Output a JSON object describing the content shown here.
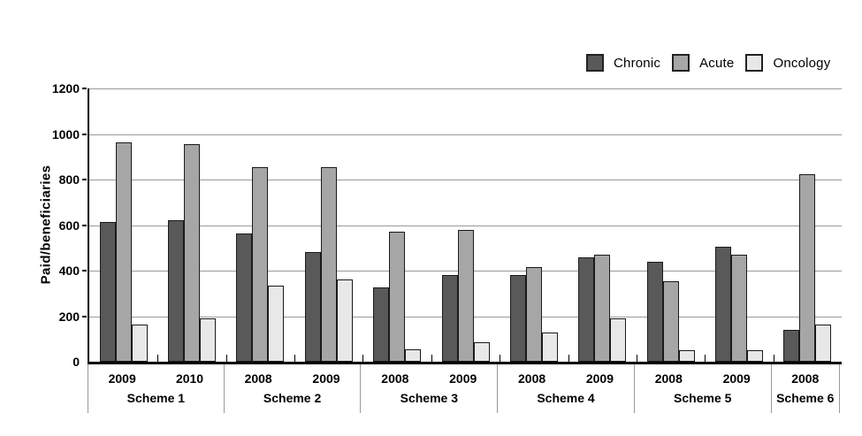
{
  "chart_data": {
    "type": "bar",
    "title": "",
    "xlabel": "",
    "ylabel": "Paid/beneficiaries",
    "ylim": [
      0,
      1200
    ],
    "ytick_interval": 200,
    "yticks": [
      0,
      200,
      400,
      600,
      800,
      1000,
      1200
    ],
    "grid": "horizontal",
    "legend_position": "top-right",
    "legend": [
      "Chronic",
      "Acute",
      "Oncology"
    ],
    "colors": {
      "grid": "#9a9a9a",
      "axis": "#000000",
      "bar_border": "#1a1a1a",
      "separator": "#999999"
    },
    "groups": [
      {
        "name": "Scheme 1",
        "years": [
          "2009",
          "2010"
        ]
      },
      {
        "name": "Scheme 2",
        "years": [
          "2008",
          "2009"
        ]
      },
      {
        "name": "Scheme 3",
        "years": [
          "2008",
          "2009"
        ]
      },
      {
        "name": "Scheme 4",
        "years": [
          "2008",
          "2009"
        ]
      },
      {
        "name": "Scheme 5",
        "years": [
          "2008",
          "2009"
        ]
      },
      {
        "name": "Scheme 6",
        "years": [
          "2008"
        ]
      }
    ],
    "categories": [
      "Scheme 1 2009",
      "Scheme 1 2010",
      "Scheme 2 2008",
      "Scheme 2 2009",
      "Scheme 3 2008",
      "Scheme 3 2009",
      "Scheme 4 2008",
      "Scheme 4 2009",
      "Scheme 5 2008",
      "Scheme 5 2009",
      "Scheme 6 2008"
    ],
    "series": [
      {
        "name": "Chronic",
        "color": "#595959",
        "values": [
          615,
          620,
          565,
          480,
          325,
          380,
          380,
          460,
          440,
          505,
          140
        ]
      },
      {
        "name": "Acute",
        "color": "#a6a6a6",
        "values": [
          965,
          955,
          855,
          855,
          570,
          580,
          415,
          470,
          355,
          470,
          825
        ]
      },
      {
        "name": "Oncology",
        "color": "#e8e8e8",
        "values": [
          165,
          190,
          335,
          360,
          55,
          85,
          130,
          190,
          50,
          50,
          165
        ]
      }
    ]
  }
}
